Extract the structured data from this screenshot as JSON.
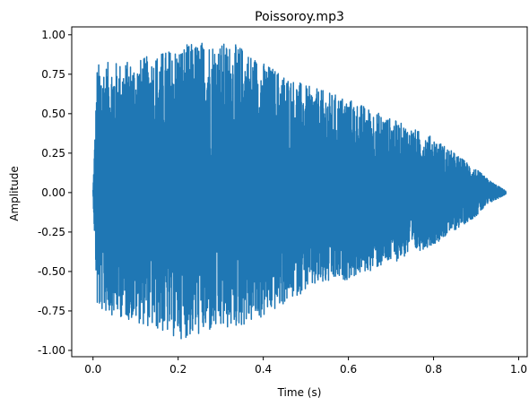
{
  "chart_data": {
    "type": "line",
    "title": "Poissoroy.mp3",
    "xlabel": "Time (s)",
    "ylabel": "Amplitude",
    "xlim": [
      -0.05,
      1.02
    ],
    "ylim": [
      -1.04,
      1.05
    ],
    "grid": false,
    "legend": "none",
    "xticks": [
      "0.0",
      "0.2",
      "0.4",
      "0.6",
      "0.8",
      "1.0"
    ],
    "yticks": [
      "-1.00",
      "-0.75",
      "-0.50",
      "-0.25",
      "0.00",
      "0.25",
      "0.50",
      "0.75",
      "1.00"
    ],
    "series": [
      {
        "color": "#1f77b4",
        "envelope": {
          "t": [
            0.0,
            0.01,
            0.05,
            0.1,
            0.2,
            0.27,
            0.35,
            0.4,
            0.5,
            0.6,
            0.7,
            0.8,
            0.9,
            0.93,
            0.97
          ],
          "upper": [
            0.02,
            0.82,
            0.83,
            0.84,
            0.93,
            0.97,
            0.93,
            0.83,
            0.68,
            0.6,
            0.47,
            0.35,
            0.15,
            0.08,
            0.01
          ],
          "lower": [
            -0.02,
            -0.75,
            -0.78,
            -0.82,
            -0.93,
            -0.9,
            -0.85,
            -0.8,
            -0.62,
            -0.55,
            -0.45,
            -0.33,
            -0.15,
            -0.07,
            -0.01
          ]
        }
      }
    ]
  }
}
